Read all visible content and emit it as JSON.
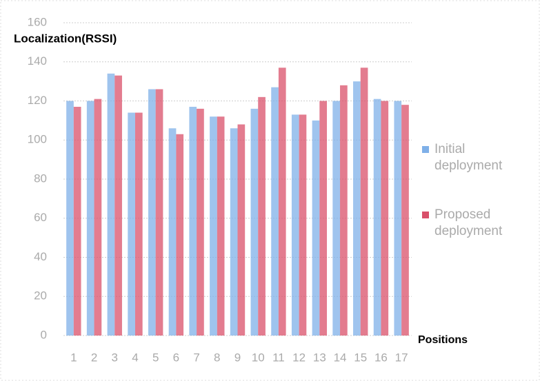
{
  "chart_data": {
    "type": "bar",
    "title": "Localization(RSSI)",
    "x_label": "Positions",
    "categories": [
      "1",
      "2",
      "3",
      "4",
      "5",
      "6",
      "7",
      "8",
      "9",
      "10",
      "11",
      "12",
      "13",
      "14",
      "15",
      "16",
      "17"
    ],
    "series": [
      {
        "name": "Initial deployment",
        "color": "#7fb0e8",
        "values": [
          120,
          120,
          134,
          114,
          126,
          106,
          117,
          112,
          106,
          116,
          127,
          113,
          110,
          120,
          130,
          121,
          120
        ]
      },
      {
        "name": "Proposed deployment",
        "color": "#d9506a",
        "values": [
          117,
          121,
          133,
          114,
          126,
          103,
          116,
          112,
          108,
          122,
          137,
          113,
          120,
          128,
          137,
          120,
          118
        ]
      }
    ],
    "ylim": [
      0,
      160
    ],
    "yticks": [
      0,
      20,
      40,
      60,
      80,
      100,
      120,
      140,
      160
    ],
    "grid": true,
    "legend": "right"
  }
}
